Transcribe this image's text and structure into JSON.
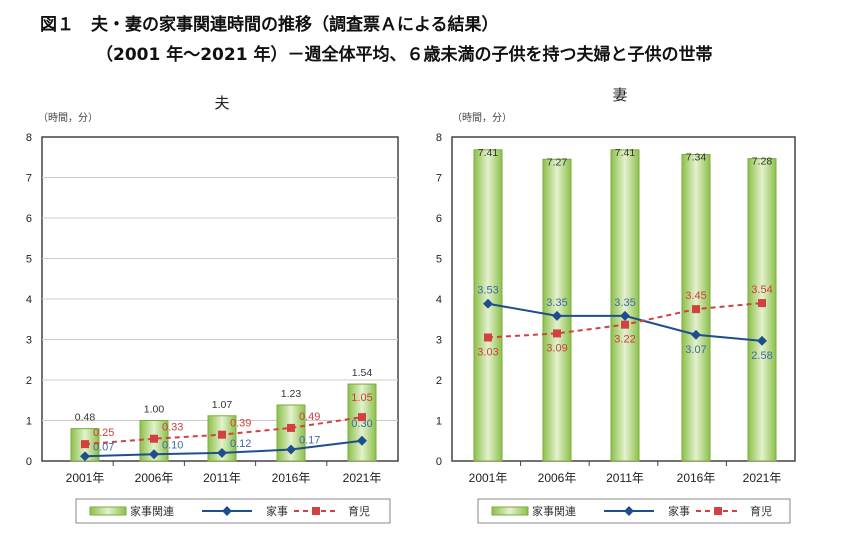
{
  "title_line1": "図１　夫・妻の家事関連時間の推移（調査票Ａによる結果）",
  "title_line2": "（2001 年～2021 年）－週全体平均、６歳未満の子供を持つ夫婦と子供の世帯",
  "colors": {
    "bar": "#8cc04a",
    "bar_light": "#e4f1cf",
    "housework": "#1f4e8c",
    "childcare": "#d24040",
    "housework_label": "#3d6aa8",
    "childcare_label": "#d23c3c"
  },
  "chart_data": [
    {
      "type": "bar+line",
      "title": "夫",
      "unit_label": "（時間，分）",
      "ylim": [
        0,
        8
      ],
      "yticks": [
        0,
        1,
        2,
        3,
        4,
        5,
        6,
        7,
        8
      ],
      "grid": true,
      "legend_placement": "bottom",
      "categories": [
        "2001年",
        "2006年",
        "2011年",
        "2016年",
        "2021年"
      ],
      "value_format": "hours.minutes",
      "series": [
        {
          "name": "家事関連",
          "kind": "bar",
          "labels": [
            "0.48",
            "1.00",
            "1.07",
            "1.23",
            "1.54"
          ]
        },
        {
          "name": "家事",
          "kind": "line-diamond",
          "labels": [
            "0.07",
            "0.10",
            "0.12",
            "0.17",
            "0.30"
          ]
        },
        {
          "name": "育児",
          "kind": "dashed-square",
          "labels": [
            "0.25",
            "0.33",
            "0.39",
            "0.49",
            "1.05"
          ]
        }
      ]
    },
    {
      "type": "bar+line",
      "title": "妻",
      "unit_label": "（時間，分）",
      "ylim": [
        0,
        8
      ],
      "yticks": [
        0,
        1,
        2,
        3,
        4,
        5,
        6,
        7,
        8
      ],
      "grid": false,
      "legend_placement": "bottom",
      "categories": [
        "2001年",
        "2006年",
        "2011年",
        "2016年",
        "2021年"
      ],
      "value_format": "hours.minutes",
      "series": [
        {
          "name": "家事関連",
          "kind": "bar",
          "labels": [
            "7.41",
            "7.27",
            "7.41",
            "7.34",
            "7.28"
          ]
        },
        {
          "name": "家事",
          "kind": "line-diamond",
          "labels": [
            "3.53",
            "3.35",
            "3.35",
            "3.07",
            "2.58"
          ]
        },
        {
          "name": "育児",
          "kind": "dashed-square",
          "labels": [
            "3.03",
            "3.09",
            "3.22",
            "3.45",
            "3.54"
          ]
        }
      ]
    }
  ]
}
